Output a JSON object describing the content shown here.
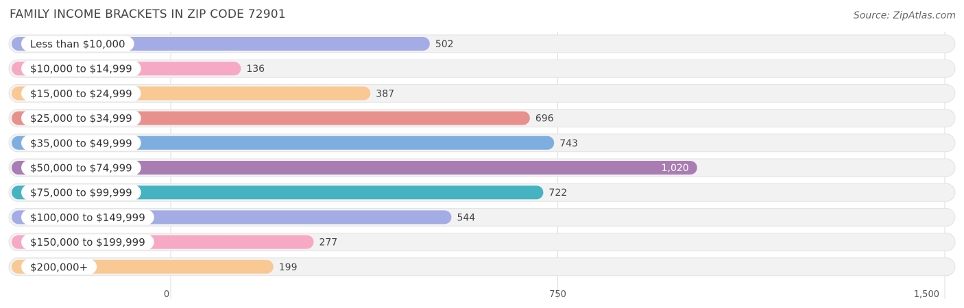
{
  "title": "FAMILY INCOME BRACKETS IN ZIP CODE 72901",
  "source": "Source: ZipAtlas.com",
  "chart_data": {
    "type": "bar",
    "orientation": "horizontal",
    "title": "FAMILY INCOME BRACKETS IN ZIP CODE 72901",
    "categories": [
      "Less than $10,000",
      "$10,000 to $14,999",
      "$15,000 to $24,999",
      "$25,000 to $34,999",
      "$35,000 to $49,999",
      "$50,000 to $74,999",
      "$75,000 to $99,999",
      "$100,000 to $149,999",
      "$150,000 to $199,999",
      "$200,000+"
    ],
    "values": [
      502,
      136,
      387,
      696,
      743,
      1020,
      722,
      544,
      277,
      199
    ],
    "value_labels": [
      "502",
      "136",
      "387",
      "696",
      "743",
      "1,020",
      "722",
      "544",
      "277",
      "199"
    ],
    "colors": [
      "#a4ace6",
      "#f7a8c4",
      "#f9c893",
      "#e8908b",
      "#7eaee0",
      "#a97db3",
      "#45b3c1",
      "#a4ace6",
      "#f7a8c4",
      "#f9c893"
    ],
    "xlim": [
      0,
      1500
    ],
    "xticks": [
      0,
      750,
      1500
    ],
    "xtick_labels": [
      "0",
      "750",
      "1,500"
    ],
    "grid": true,
    "xlabel": "",
    "ylabel": ""
  }
}
